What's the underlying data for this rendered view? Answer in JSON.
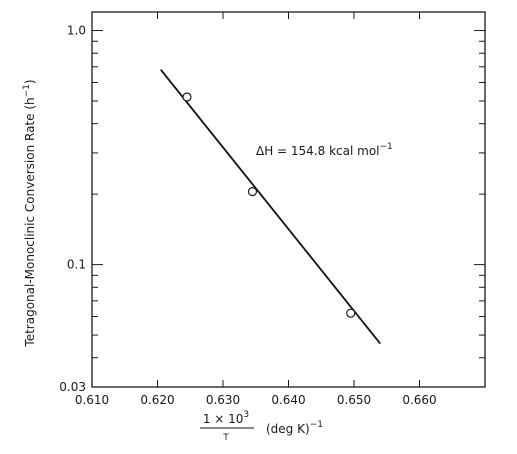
{
  "chart_data": {
    "type": "scatter",
    "title": "",
    "y_scale": "log",
    "xlim": [
      0.61,
      0.67
    ],
    "ylim": [
      0.03,
      1.2
    ],
    "x_tick_labels": [
      "0.610",
      "0.620",
      "0.630",
      "0.640",
      "0.650",
      "0.660"
    ],
    "x_ticks": [
      0.61,
      0.62,
      0.63,
      0.64,
      0.65,
      0.66
    ],
    "y_tick_labels": [
      "0.03",
      "0.1",
      "1.0"
    ],
    "y_ticks": [
      0.03,
      0.1,
      1.0
    ],
    "y_minor_ticks": [
      0.04,
      0.05,
      0.06,
      0.07,
      0.08,
      0.09,
      0.2,
      0.3,
      0.4,
      0.5,
      0.6,
      0.7,
      0.8,
      0.9
    ],
    "ylabel_main": "Tetragonal-Monoclinic Conversion Rate (h",
    "ylabel_sup": "−1",
    "ylabel_close": ")",
    "xlabel_numerator": "1 × 10",
    "xlabel_numerator_sup": "3",
    "xlabel_denominator": "T",
    "xlabel_unit": "(deg K)",
    "xlabel_unit_sup": "−1",
    "annotation_main": "ΔH = 154.8 kcal mol",
    "annotation_sup": "−1",
    "points": [
      {
        "x": 0.6245,
        "y": 0.52
      },
      {
        "x": 0.6345,
        "y": 0.205
      },
      {
        "x": 0.6495,
        "y": 0.062
      }
    ],
    "fit_line": [
      {
        "x": 0.6205,
        "y": 0.68
      },
      {
        "x": 0.654,
        "y": 0.046
      }
    ],
    "grid": false,
    "legend": "none"
  },
  "colors": {
    "axis": "#1a1a1a",
    "line": "#111111",
    "marker_stroke": "#1a1a1a",
    "marker_fill": "#ffffff"
  }
}
